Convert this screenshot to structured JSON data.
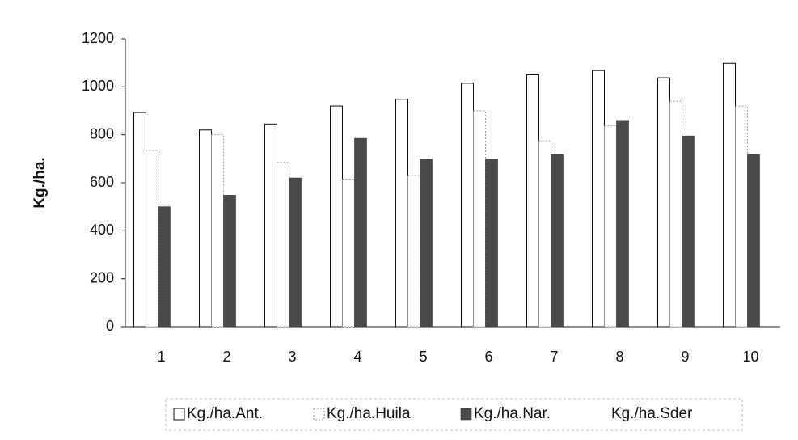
{
  "chart_data": {
    "type": "bar",
    "y_label": "Kg./ha.",
    "categories": [
      "1",
      "2",
      "3",
      "4",
      "5",
      "6",
      "7",
      "8",
      "9",
      "10"
    ],
    "series": [
      {
        "name": "Kg./ha.Ant.",
        "color": "#ffffff",
        "values": [
          893,
          820,
          845,
          920,
          948,
          1015,
          1050,
          1068,
          1038,
          1098
        ]
      },
      {
        "name": "Kg./ha.Huila",
        "color": "#ffffff",
        "values": [
          735,
          800,
          685,
          615,
          630,
          900,
          775,
          838,
          940,
          920
        ]
      },
      {
        "name": "Kg./ha.Nar.",
        "color": "#4a4a4a",
        "values": [
          500,
          548,
          620,
          785,
          700,
          700,
          718,
          860,
          795,
          718
        ]
      },
      {
        "name": "Kg./ha.Sder",
        "color": "#ffffff",
        "values": [
          0,
          0,
          0,
          0,
          0,
          0,
          0,
          0,
          0,
          0
        ]
      }
    ],
    "ylim": [
      0,
      1200
    ],
    "yticks": [
      0,
      200,
      400,
      600,
      800,
      1000,
      1200
    ],
    "grid": false
  }
}
